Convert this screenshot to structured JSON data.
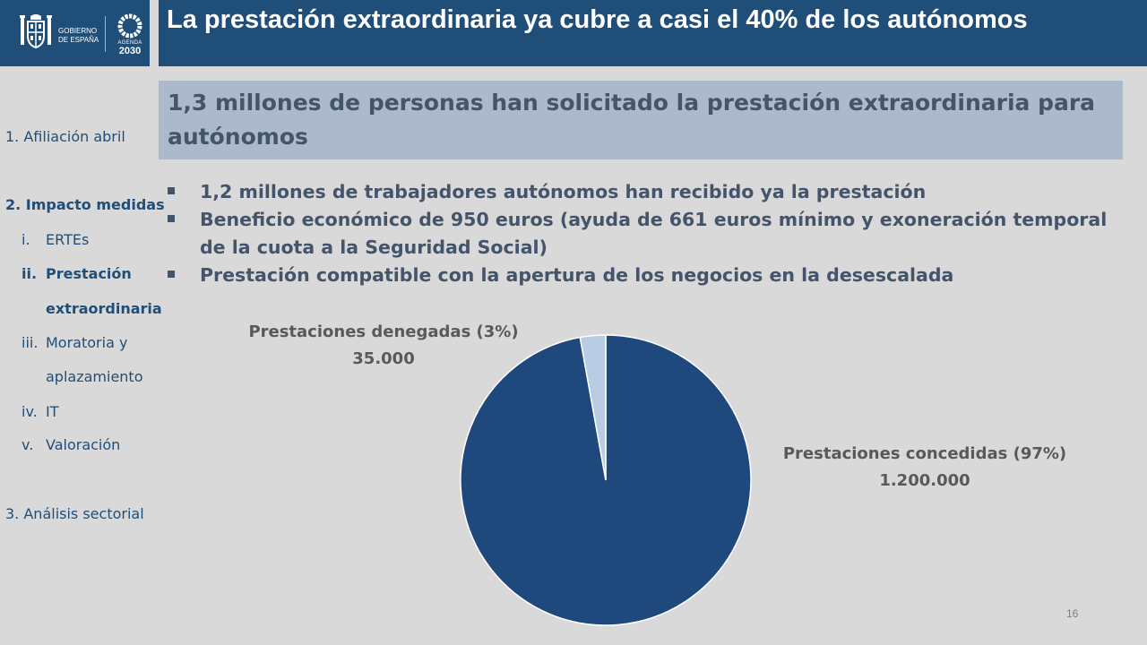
{
  "header": {
    "title": "La prestación extraordinaria ya cubre a casi el 40% de los autónomos",
    "logo_gov_line1": "GOBIERNO",
    "logo_gov_line2": "DE ESPAÑA",
    "logo_agenda_line1": "AGENDA",
    "logo_agenda_line2": "2030"
  },
  "sidebar": {
    "item1": {
      "num": "1.",
      "label": "Afiliación abril"
    },
    "item2": {
      "num": "2.",
      "label": "Impacto medidas"
    },
    "sub": [
      {
        "num": "i.",
        "label": "ERTEs"
      },
      {
        "num": "ii.",
        "label": "Prestación"
      },
      {
        "num": "",
        "label": "extraordinaria"
      },
      {
        "num": "iii.",
        "label": "Moratoria y"
      },
      {
        "num": "",
        "label": "aplazamiento"
      },
      {
        "num": "iv.",
        "label": "IT"
      },
      {
        "num": "v.",
        "label": "Valoración"
      }
    ],
    "item3": {
      "num": "3.",
      "label": "Análisis sectorial"
    }
  },
  "subtitle": "1,3 millones de personas han solicitado la prestación extraordinaria para autónomos",
  "bullets": [
    "1,2 millones de trabajadores autónomos han recibido ya la prestación",
    "Beneficio económico de 950 euros (ayuda de 661 euros mínimo y exoneración temporal de la cuota a la Seguridad Social)",
    "Prestación compatible con la apertura de los negocios en la desescalada"
  ],
  "colors": {
    "header_bg": "#1f4e79",
    "subtitle_bg": "#acb9ca",
    "slice_concedidas": "#1f497d",
    "slice_denegadas": "#b8cce4"
  },
  "chart_data": {
    "type": "pie",
    "slices": [
      {
        "label": "Prestaciones concedidas (97%)",
        "value": 1200000,
        "value_label": "1.200.000"
      },
      {
        "label": "Prestaciones denegadas (3%)",
        "value": 35000,
        "value_label": "35.000"
      }
    ]
  },
  "page_number": "16"
}
